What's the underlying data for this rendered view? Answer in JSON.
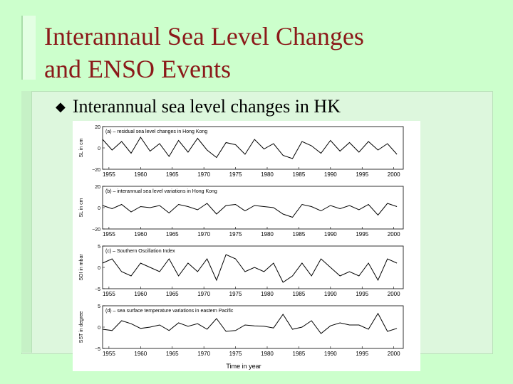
{
  "slide": {
    "title_line1": "Interannaul Sea Level Changes",
    "title_line2": "and ENSO Events",
    "bullet": "Interannual sea level changes in HK",
    "colors": {
      "title": "#8b1a1a",
      "background": "#ccffcc",
      "series": "#000000"
    }
  },
  "figure": {
    "xlabel": "Time in year",
    "x_ticks": [
      "1955",
      "1960",
      "1965",
      "1970",
      "1975",
      "1980",
      "1985",
      "1990",
      "1995",
      "2000"
    ]
  },
  "chart_data": [
    {
      "type": "line",
      "title": "(a) – residual sea level changes in Hong Kong",
      "ylabel": "SL in cm",
      "xlim": [
        1954,
        2001.5
      ],
      "ylim": [
        -20,
        20
      ],
      "yticks": [
        "20",
        "0",
        "−20"
      ],
      "x": [
        1954,
        1955.5,
        1957,
        1958.5,
        1960,
        1961.5,
        1963,
        1964.5,
        1966,
        1967.5,
        1969,
        1970.5,
        1972,
        1973.5,
        1975,
        1976.5,
        1978,
        1979.5,
        1981,
        1982.5,
        1984,
        1985.5,
        1987,
        1988.5,
        1990,
        1991.5,
        1993,
        1994.5,
        1996,
        1997.5,
        1999,
        2000.5
      ],
      "series": [
        {
          "values": [
            8,
            -2,
            6,
            -5,
            10,
            -3,
            4,
            -8,
            7,
            -4,
            9,
            -2,
            -9,
            5,
            3,
            -6,
            8,
            -1,
            4,
            -7,
            -10,
            6,
            2,
            -5,
            7,
            -3,
            5,
            -4,
            6,
            -2,
            4,
            -6
          ]
        }
      ]
    },
    {
      "type": "line",
      "title": "(b) – interannual sea level variations in Hong Kong",
      "ylabel": "SL in cm",
      "xlim": [
        1954,
        2001.5
      ],
      "ylim": [
        -20,
        20
      ],
      "yticks": [
        "20",
        "0",
        "−20"
      ],
      "x": [
        1954,
        1955.5,
        1957,
        1958.5,
        1960,
        1961.5,
        1963,
        1964.5,
        1966,
        1967.5,
        1969,
        1970.5,
        1972,
        1973.5,
        1975,
        1976.5,
        1978,
        1979.5,
        1981,
        1982.5,
        1984,
        1985.5,
        1987,
        1988.5,
        1990,
        1991.5,
        1993,
        1994.5,
        1996,
        1997.5,
        1999,
        2000.5
      ],
      "series": [
        {
          "values": [
            2,
            -1,
            3,
            -4,
            1,
            0,
            2,
            -5,
            3,
            1,
            -2,
            4,
            -6,
            2,
            3,
            -3,
            2,
            1,
            0,
            -6,
            -9,
            3,
            1,
            -3,
            2,
            -1,
            2,
            -2,
            3,
            -7,
            4,
            1
          ]
        }
      ]
    },
    {
      "type": "line",
      "title": "(c) – Southern Oscillation Index",
      "ylabel": "SOI in mbar",
      "xlim": [
        1954,
        2001.5
      ],
      "ylim": [
        -5,
        5
      ],
      "yticks": [
        "5",
        "0",
        "−5"
      ],
      "x": [
        1954,
        1955.5,
        1957,
        1958.5,
        1960,
        1961.5,
        1963,
        1964.5,
        1966,
        1967.5,
        1969,
        1970.5,
        1972,
        1973.5,
        1975,
        1976.5,
        1978,
        1979.5,
        1981,
        1982.5,
        1984,
        1985.5,
        1987,
        1988.5,
        1990,
        1991.5,
        1993,
        1994.5,
        1996,
        1997.5,
        1999,
        2000.5
      ],
      "series": [
        {
          "values": [
            1,
            2,
            -1,
            -2,
            1,
            0,
            -1,
            2,
            -2,
            1,
            -1,
            2,
            -3,
            3,
            2,
            -1,
            0,
            -1,
            1,
            -3.5,
            -2,
            1,
            -2,
            2,
            0,
            -2,
            -1,
            -2,
            1,
            -3,
            2,
            1
          ]
        }
      ]
    },
    {
      "type": "line",
      "title": "(d) – sea surface temperature variations in eastern Pacific",
      "ylabel": "SST in degree",
      "xlim": [
        1954,
        2001.5
      ],
      "ylim": [
        -5,
        5
      ],
      "yticks": [
        "5",
        "0",
        "−5"
      ],
      "x": [
        1954,
        1955.5,
        1957,
        1958.5,
        1960,
        1961.5,
        1963,
        1964.5,
        1966,
        1967.5,
        1969,
        1970.5,
        1972,
        1973.5,
        1975,
        1976.5,
        1978,
        1979.5,
        1981,
        1982.5,
        1984,
        1985.5,
        1987,
        1988.5,
        1990,
        1991.5,
        1993,
        1994.5,
        1996,
        1997.5,
        1999,
        2000.5
      ],
      "series": [
        {
          "values": [
            -0.5,
            -0.8,
            1.5,
            0.8,
            -0.3,
            0,
            0.5,
            -0.8,
            1,
            0.2,
            0.8,
            -0.5,
            2,
            -1,
            -0.8,
            0.5,
            0.3,
            0.2,
            -0.2,
            3,
            -0.5,
            0,
            1.5,
            -1.5,
            0.3,
            1,
            0.5,
            0.5,
            -0.5,
            3.2,
            -1,
            -0.3
          ]
        }
      ]
    }
  ]
}
